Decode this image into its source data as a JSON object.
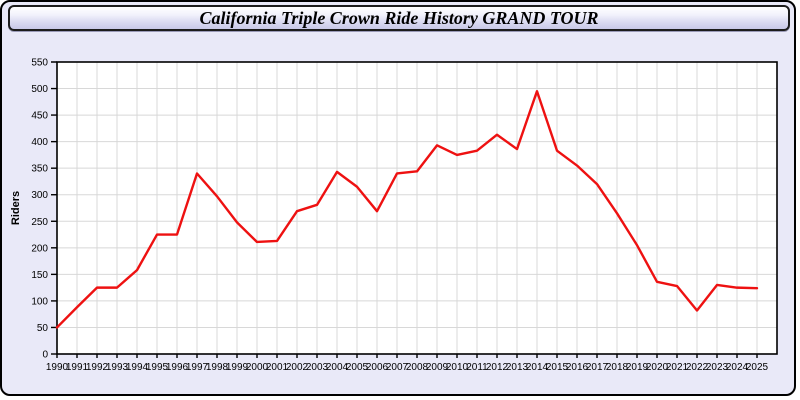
{
  "page": {
    "background_color": "#e9e9f8",
    "border_color": "#000000"
  },
  "header": {
    "title": "California Triple Crown Ride History GRAND TOUR",
    "border_color": "#1c1c1c",
    "text_color": "#000000"
  },
  "chart_data": {
    "type": "line",
    "title": "California Triple Crown Ride History GRAND TOUR",
    "xlabel": "",
    "ylabel": "Riders",
    "categories": [
      "1990",
      "1991",
      "1992",
      "1993",
      "1994",
      "1995",
      "1996",
      "1997",
      "1998",
      "1999",
      "2000",
      "2001",
      "2002",
      "2003",
      "2004",
      "2005",
      "2006",
      "2007",
      "2008",
      "2009",
      "2010",
      "2011",
      "2012",
      "2013",
      "2014",
      "2015",
      "2016",
      "2017",
      "2018",
      "2019",
      "2020",
      "2021",
      "2022",
      "2023",
      "2024",
      "2025"
    ],
    "series": [
      {
        "name": "Riders",
        "color": "#ee1111",
        "values": [
          50,
          88,
          125,
          125,
          158,
          225,
          225,
          340,
          297,
          248,
          211,
          213,
          269,
          281,
          343,
          315,
          269,
          340,
          344,
          393,
          375,
          383,
          413,
          386,
          495,
          383,
          355,
          320,
          265,
          205,
          136,
          128,
          82,
          130,
          125,
          124
        ]
      }
    ],
    "ylim": [
      0,
      550
    ],
    "yticks": [
      0,
      50,
      100,
      150,
      200,
      250,
      300,
      350,
      400,
      450,
      500,
      550
    ],
    "grid": true,
    "legend": "none",
    "plot_background": "#ffffff",
    "gridline_color": "#d8d8d8",
    "axis_color": "#000000",
    "tick_label_color": "#000000"
  }
}
